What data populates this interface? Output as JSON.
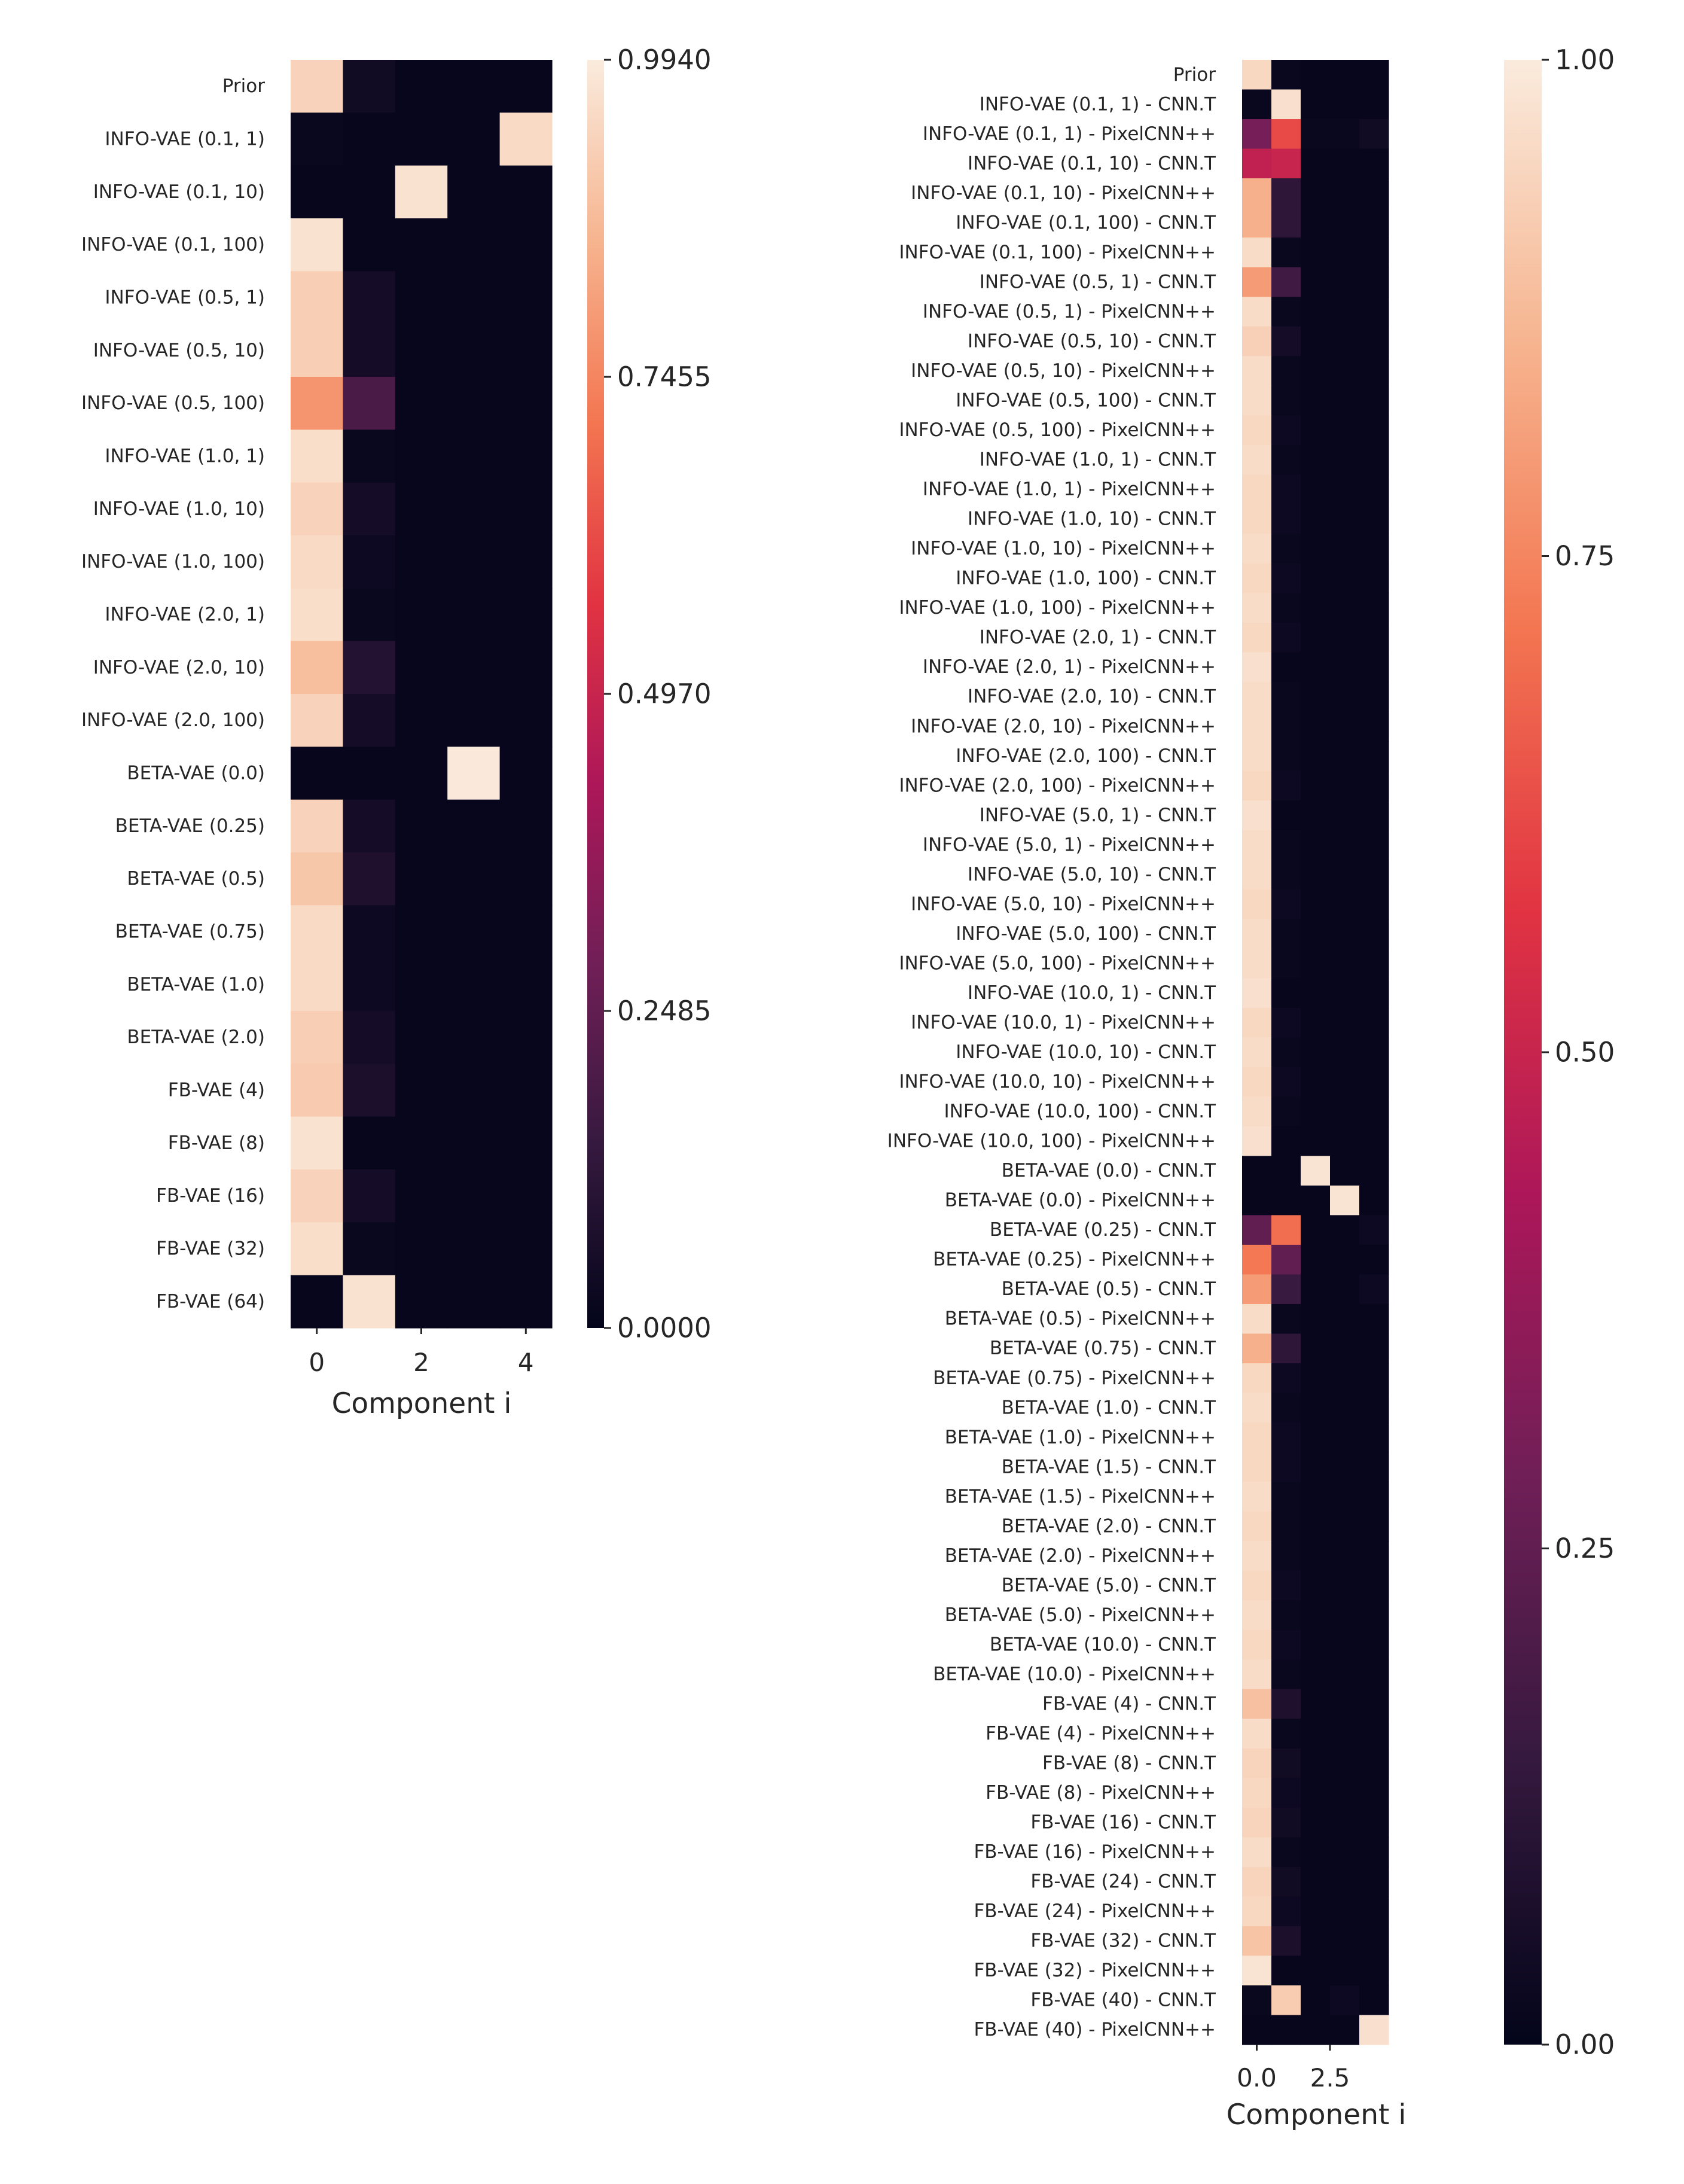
{
  "chart_data": [
    {
      "type": "heatmap",
      "title": "",
      "xlabel": "Component i",
      "ylabel": "",
      "x_ticks": [
        "0",
        "2",
        "4"
      ],
      "x_tick_positions": [
        0,
        2,
        4
      ],
      "columns": [
        0,
        1,
        2,
        3,
        4
      ],
      "rows": [
        "Prior",
        "INFO-VAE (0.1, 1)",
        "INFO-VAE (0.1, 10)",
        "INFO-VAE (0.1, 100)",
        "INFO-VAE (0.5, 1)",
        "INFO-VAE (0.5, 10)",
        "INFO-VAE (0.5, 100)",
        "INFO-VAE (1.0, 1)",
        "INFO-VAE (1.0, 10)",
        "INFO-VAE (1.0, 100)",
        "INFO-VAE (2.0, 1)",
        "INFO-VAE (2.0, 10)",
        "INFO-VAE (2.0, 100)",
        "BETA-VAE (0.0)",
        "BETA-VAE (0.25)",
        "BETA-VAE (0.5)",
        "BETA-VAE (0.75)",
        "BETA-VAE (1.0)",
        "BETA-VAE (2.0)",
        "FB-VAE (4)",
        "FB-VAE (8)",
        "FB-VAE (16)",
        "FB-VAE (32)",
        "FB-VAE (64)"
      ],
      "values": [
        [
          0.93,
          0.04,
          0.01,
          0.01,
          0.01
        ],
        [
          0.02,
          0.01,
          0.01,
          0.01,
          0.95
        ],
        [
          0.01,
          0.01,
          0.97,
          0.01,
          0.01
        ],
        [
          0.97,
          0.01,
          0.01,
          0.01,
          0.01
        ],
        [
          0.92,
          0.05,
          0.01,
          0.01,
          0.01
        ],
        [
          0.92,
          0.05,
          0.01,
          0.01,
          0.01
        ],
        [
          0.78,
          0.19,
          0.01,
          0.01,
          0.01
        ],
        [
          0.96,
          0.02,
          0.01,
          0.01,
          0.01
        ],
        [
          0.93,
          0.05,
          0.01,
          0.01,
          0.01
        ],
        [
          0.95,
          0.03,
          0.01,
          0.01,
          0.01
        ],
        [
          0.96,
          0.02,
          0.01,
          0.01,
          0.01
        ],
        [
          0.88,
          0.09,
          0.01,
          0.01,
          0.01
        ],
        [
          0.93,
          0.05,
          0.01,
          0.01,
          0.01
        ],
        [
          0.01,
          0.01,
          0.01,
          0.99,
          0.01
        ],
        [
          0.93,
          0.05,
          0.01,
          0.01,
          0.01
        ],
        [
          0.9,
          0.08,
          0.01,
          0.01,
          0.01
        ],
        [
          0.95,
          0.03,
          0.01,
          0.01,
          0.01
        ],
        [
          0.95,
          0.03,
          0.01,
          0.01,
          0.01
        ],
        [
          0.92,
          0.05,
          0.01,
          0.01,
          0.01
        ],
        [
          0.91,
          0.07,
          0.01,
          0.01,
          0.01
        ],
        [
          0.97,
          0.01,
          0.01,
          0.01,
          0.01
        ],
        [
          0.93,
          0.05,
          0.01,
          0.01,
          0.01
        ],
        [
          0.96,
          0.02,
          0.01,
          0.01,
          0.01
        ],
        [
          0.01,
          0.97,
          0.01,
          0.01,
          0.01
        ]
      ],
      "colorbar": {
        "min": 0.0,
        "max": 0.994,
        "ticks": [
          "0.0000",
          "0.2485",
          "0.4970",
          "0.7455",
          "0.9940"
        ],
        "tick_values": [
          0.0,
          0.2485,
          0.497,
          0.7455,
          0.994
        ]
      },
      "colormap": "rocket",
      "colormap_stops": [
        "#03051a",
        "#35193e",
        "#701f57",
        "#ad1759",
        "#e13342",
        "#f37651",
        "#f6b48f",
        "#faebdd"
      ]
    },
    {
      "type": "heatmap",
      "title": "",
      "xlabel": "Component i",
      "ylabel": "",
      "x_ticks": [
        "0.0",
        "2.5"
      ],
      "x_tick_positions": [
        0,
        2.5
      ],
      "columns": [
        0,
        1,
        2,
        3,
        4
      ],
      "rows": [
        "Prior",
        "INFO-VAE (0.1, 1) - CNN.T",
        "INFO-VAE (0.1, 1) - PixelCNN++",
        "INFO-VAE (0.1, 10) - CNN.T",
        "INFO-VAE (0.1, 10) - PixelCNN++",
        "INFO-VAE (0.1, 100) - CNN.T",
        "INFO-VAE (0.1, 100) - PixelCNN++",
        "INFO-VAE (0.5, 1) - CNN.T",
        "INFO-VAE (0.5, 1) - PixelCNN++",
        "INFO-VAE (0.5, 10) - CNN.T",
        "INFO-VAE (0.5, 10) - PixelCNN++",
        "INFO-VAE (0.5, 100) - CNN.T",
        "INFO-VAE (0.5, 100) - PixelCNN++",
        "INFO-VAE (1.0, 1) - CNN.T",
        "INFO-VAE (1.0, 1) - PixelCNN++",
        "INFO-VAE (1.0, 10) - CNN.T",
        "INFO-VAE (1.0, 10) - PixelCNN++",
        "INFO-VAE (1.0, 100) - CNN.T",
        "INFO-VAE (1.0, 100) - PixelCNN++",
        "INFO-VAE (2.0, 1) - CNN.T",
        "INFO-VAE (2.0, 1) - PixelCNN++",
        "INFO-VAE (2.0, 10) - CNN.T",
        "INFO-VAE (2.0, 10) - PixelCNN++",
        "INFO-VAE (2.0, 100) - CNN.T",
        "INFO-VAE (2.0, 100) - PixelCNN++",
        "INFO-VAE (5.0, 1) - CNN.T",
        "INFO-VAE (5.0, 1) - PixelCNN++",
        "INFO-VAE (5.0, 10) - CNN.T",
        "INFO-VAE (5.0, 10) - PixelCNN++",
        "INFO-VAE (5.0, 100) - CNN.T",
        "INFO-VAE (5.0, 100) - PixelCNN++",
        "INFO-VAE (10.0, 1) - CNN.T",
        "INFO-VAE (10.0, 1) - PixelCNN++",
        "INFO-VAE (10.0, 10) - CNN.T",
        "INFO-VAE (10.0, 10) - PixelCNN++",
        "INFO-VAE (10.0, 100) - CNN.T",
        "INFO-VAE (10.0, 100) - PixelCNN++",
        "BETA-VAE (0.0) - CNN.T",
        "BETA-VAE (0.0) - PixelCNN++",
        "BETA-VAE (0.25) - CNN.T",
        "BETA-VAE (0.25) - PixelCNN++",
        "BETA-VAE (0.5) - CNN.T",
        "BETA-VAE (0.5) - PixelCNN++",
        "BETA-VAE (0.75) - CNN.T",
        "BETA-VAE (0.75) - PixelCNN++",
        "BETA-VAE (1.0) - CNN.T",
        "BETA-VAE (1.0) - PixelCNN++",
        "BETA-VAE (1.5) - CNN.T",
        "BETA-VAE (1.5) - PixelCNN++",
        "BETA-VAE (2.0) - CNN.T",
        "BETA-VAE (2.0) - PixelCNN++",
        "BETA-VAE (5.0) - CNN.T",
        "BETA-VAE (5.0) - PixelCNN++",
        "BETA-VAE (10.0) - CNN.T",
        "BETA-VAE (10.0) - PixelCNN++",
        "FB-VAE (4) - CNN.T",
        "FB-VAE (4) - PixelCNN++",
        "FB-VAE (8) - CNN.T",
        "FB-VAE (8) - PixelCNN++",
        "FB-VAE (16) - CNN.T",
        "FB-VAE (16) - PixelCNN++",
        "FB-VAE (24) - CNN.T",
        "FB-VAE (24) - PixelCNN++",
        "FB-VAE (32) - CNN.T",
        "FB-VAE (32) - PixelCNN++",
        "FB-VAE (40) - CNN.T",
        "FB-VAE (40) - PixelCNN++"
      ],
      "values": [
        [
          0.95,
          0.02,
          0.01,
          0.01,
          0.01
        ],
        [
          0.02,
          0.97,
          0.01,
          0.01,
          0.01
        ],
        [
          0.3,
          0.62,
          0.02,
          0.02,
          0.04
        ],
        [
          0.48,
          0.5,
          0.01,
          0.01,
          0.01
        ],
        [
          0.85,
          0.12,
          0.01,
          0.01,
          0.01
        ],
        [
          0.85,
          0.12,
          0.01,
          0.01,
          0.01
        ],
        [
          0.96,
          0.02,
          0.01,
          0.01,
          0.01
        ],
        [
          0.8,
          0.17,
          0.01,
          0.01,
          0.01
        ],
        [
          0.96,
          0.02,
          0.01,
          0.01,
          0.01
        ],
        [
          0.93,
          0.05,
          0.01,
          0.01,
          0.01
        ],
        [
          0.96,
          0.02,
          0.01,
          0.01,
          0.01
        ],
        [
          0.96,
          0.02,
          0.01,
          0.01,
          0.01
        ],
        [
          0.95,
          0.03,
          0.01,
          0.01,
          0.01
        ],
        [
          0.96,
          0.02,
          0.01,
          0.01,
          0.01
        ],
        [
          0.95,
          0.03,
          0.01,
          0.01,
          0.01
        ],
        [
          0.95,
          0.03,
          0.01,
          0.01,
          0.01
        ],
        [
          0.96,
          0.02,
          0.01,
          0.01,
          0.01
        ],
        [
          0.95,
          0.03,
          0.01,
          0.01,
          0.01
        ],
        [
          0.96,
          0.02,
          0.01,
          0.01,
          0.01
        ],
        [
          0.95,
          0.03,
          0.01,
          0.01,
          0.01
        ],
        [
          0.97,
          0.01,
          0.01,
          0.01,
          0.01
        ],
        [
          0.96,
          0.02,
          0.01,
          0.01,
          0.01
        ],
        [
          0.96,
          0.02,
          0.01,
          0.01,
          0.01
        ],
        [
          0.96,
          0.02,
          0.01,
          0.01,
          0.01
        ],
        [
          0.95,
          0.03,
          0.01,
          0.01,
          0.01
        ],
        [
          0.97,
          0.01,
          0.01,
          0.01,
          0.01
        ],
        [
          0.96,
          0.02,
          0.01,
          0.01,
          0.01
        ],
        [
          0.96,
          0.02,
          0.01,
          0.01,
          0.01
        ],
        [
          0.95,
          0.03,
          0.01,
          0.01,
          0.01
        ],
        [
          0.96,
          0.02,
          0.01,
          0.01,
          0.01
        ],
        [
          0.96,
          0.02,
          0.01,
          0.01,
          0.01
        ],
        [
          0.97,
          0.01,
          0.01,
          0.01,
          0.01
        ],
        [
          0.95,
          0.03,
          0.01,
          0.01,
          0.01
        ],
        [
          0.96,
          0.02,
          0.01,
          0.01,
          0.01
        ],
        [
          0.95,
          0.03,
          0.01,
          0.01,
          0.01
        ],
        [
          0.96,
          0.02,
          0.01,
          0.01,
          0.01
        ],
        [
          0.97,
          0.01,
          0.01,
          0.01,
          0.01
        ],
        [
          0.01,
          0.01,
          0.98,
          0.01,
          0.01
        ],
        [
          0.01,
          0.01,
          0.01,
          0.98,
          0.01
        ],
        [
          0.25,
          0.7,
          0.01,
          0.01,
          0.03
        ],
        [
          0.72,
          0.25,
          0.01,
          0.01,
          0.01
        ],
        [
          0.8,
          0.15,
          0.01,
          0.01,
          0.03
        ],
        [
          0.96,
          0.02,
          0.01,
          0.01,
          0.01
        ],
        [
          0.85,
          0.12,
          0.01,
          0.01,
          0.01
        ],
        [
          0.95,
          0.03,
          0.01,
          0.01,
          0.01
        ],
        [
          0.96,
          0.02,
          0.01,
          0.01,
          0.01
        ],
        [
          0.95,
          0.03,
          0.01,
          0.01,
          0.01
        ],
        [
          0.95,
          0.03,
          0.01,
          0.01,
          0.01
        ],
        [
          0.96,
          0.02,
          0.01,
          0.01,
          0.01
        ],
        [
          0.95,
          0.02,
          0.01,
          0.01,
          0.01
        ],
        [
          0.96,
          0.02,
          0.01,
          0.01,
          0.01
        ],
        [
          0.95,
          0.03,
          0.01,
          0.01,
          0.01
        ],
        [
          0.96,
          0.02,
          0.01,
          0.01,
          0.01
        ],
        [
          0.95,
          0.03,
          0.01,
          0.01,
          0.01
        ],
        [
          0.96,
          0.02,
          0.01,
          0.01,
          0.01
        ],
        [
          0.89,
          0.08,
          0.01,
          0.01,
          0.01
        ],
        [
          0.96,
          0.02,
          0.01,
          0.01,
          0.01
        ],
        [
          0.94,
          0.04,
          0.01,
          0.01,
          0.01
        ],
        [
          0.95,
          0.03,
          0.01,
          0.01,
          0.01
        ],
        [
          0.94,
          0.04,
          0.01,
          0.01,
          0.01
        ],
        [
          0.96,
          0.02,
          0.01,
          0.01,
          0.01
        ],
        [
          0.94,
          0.04,
          0.01,
          0.01,
          0.01
        ],
        [
          0.95,
          0.03,
          0.01,
          0.01,
          0.01
        ],
        [
          0.9,
          0.07,
          0.01,
          0.01,
          0.01
        ],
        [
          0.98,
          0.01,
          0.01,
          0.01,
          0.01
        ],
        [
          0.02,
          0.92,
          0.01,
          0.03,
          0.01
        ],
        [
          0.01,
          0.01,
          0.01,
          0.01,
          0.97
        ]
      ],
      "colorbar": {
        "min": 0.0,
        "max": 1.0,
        "ticks": [
          "0.00",
          "0.25",
          "0.50",
          "0.75",
          "1.00"
        ],
        "tick_values": [
          0.0,
          0.25,
          0.5,
          0.75,
          1.0
        ]
      },
      "colormap": "rocket",
      "colormap_stops": [
        "#03051a",
        "#35193e",
        "#701f57",
        "#ad1759",
        "#e13342",
        "#f37651",
        "#f6b48f",
        "#faebdd"
      ]
    }
  ]
}
